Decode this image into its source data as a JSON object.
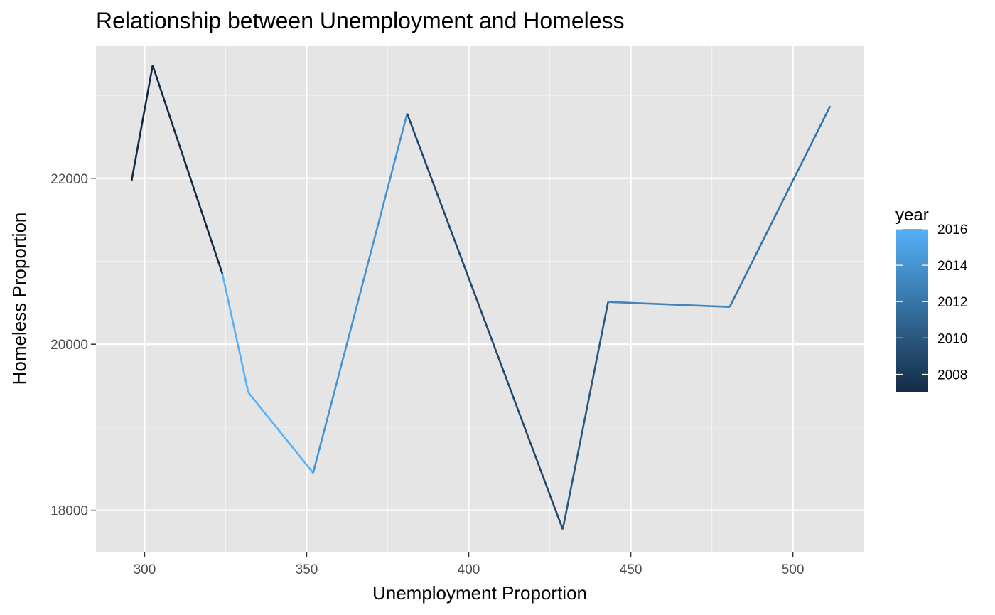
{
  "chart_data": {
    "type": "line",
    "title": "Relationship between Unemployment and Homeless",
    "xlabel": "Unemployment Proportion",
    "ylabel": "Homeless Proportion",
    "xlim": [
      285,
      522
    ],
    "ylim": [
      17500,
      23600
    ],
    "x_ticks": [
      300,
      350,
      400,
      450,
      500
    ],
    "x_tick_labels": [
      "300",
      "350",
      "400",
      "450",
      "500"
    ],
    "y_ticks": [
      18000,
      20000,
      22000
    ],
    "y_tick_labels": [
      "18000",
      "20000",
      "22000"
    ],
    "grid": true,
    "legend": {
      "title": "year",
      "placement": "right",
      "type": "colorbar",
      "range": [
        2007,
        2016
      ],
      "ticks": [
        2008,
        2010,
        2012,
        2014,
        2016
      ],
      "tick_labels": [
        "2008",
        "2010",
        "2012",
        "2014",
        "2016"
      ],
      "color_low": "#132b43",
      "color_high": "#56b1f7"
    },
    "points": [
      {
        "x": 296,
        "y": 21970,
        "year": 2007
      },
      {
        "x": 302.5,
        "y": 23360,
        "year": 2007
      },
      {
        "x": 324,
        "y": 20850,
        "year": 2008
      },
      {
        "x": 324,
        "y": 20850,
        "year": 2016
      },
      {
        "x": 332,
        "y": 19420,
        "year": 2016
      },
      {
        "x": 352,
        "y": 18450,
        "year": 2014
      },
      {
        "x": 381,
        "y": 22780,
        "year": 2009
      },
      {
        "x": 429,
        "y": 17770,
        "year": 2010
      },
      {
        "x": 443,
        "y": 20510,
        "year": 2013
      },
      {
        "x": 480.5,
        "y": 20450,
        "year": 2012
      },
      {
        "x": 511.5,
        "y": 22870,
        "year": 2011
      }
    ]
  },
  "colors": {
    "panel_background": "#e5e5e5",
    "grid_major": "#ffffff",
    "grid_minor": "#f2f2f2",
    "tick_mark": "#333333"
  }
}
